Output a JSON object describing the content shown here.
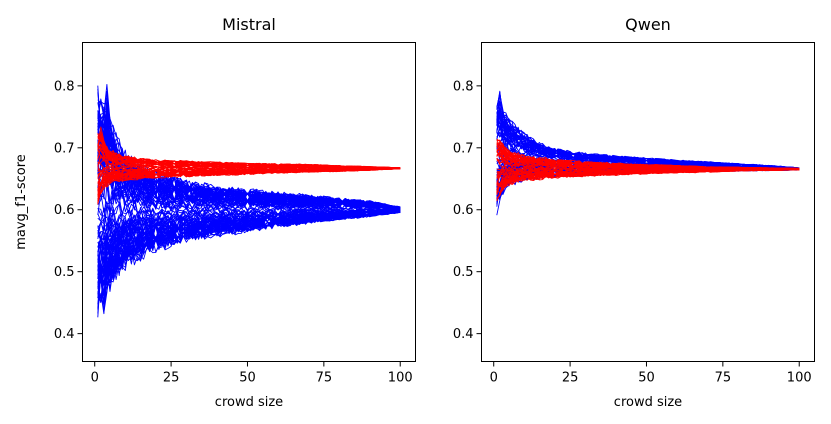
{
  "chart_data": [
    {
      "type": "line",
      "title": "Mistral",
      "xlabel": "crowd size",
      "ylabel": "mavg_f1-score",
      "xlim": [
        -4,
        105
      ],
      "ylim": [
        0.355,
        0.87
      ],
      "xticks": [
        0,
        25,
        50,
        75,
        100
      ],
      "xtick_labels": [
        "0",
        "25",
        "50",
        "75",
        "100"
      ],
      "yticks": [
        0.4,
        0.5,
        0.6,
        0.7,
        0.8
      ],
      "ytick_labels": [
        "0.4",
        "0.5",
        "0.6",
        "0.7",
        "0.8"
      ],
      "grid": false,
      "series": [
        {
          "name": "blue runs",
          "color": "#0000ff",
          "x": [
            1,
            2,
            3,
            4,
            5,
            7,
            10,
            15,
            20,
            30,
            40,
            50,
            60,
            70,
            80,
            90,
            100
          ],
          "center": [
            0.6,
            0.6,
            0.6,
            0.6,
            0.6,
            0.6,
            0.598,
            0.598,
            0.598,
            0.599,
            0.6,
            0.6,
            0.6,
            0.6,
            0.6,
            0.6,
            0.6
          ],
          "upper": [
            0.81,
            0.8,
            0.79,
            0.82,
            0.76,
            0.725,
            0.7,
            0.68,
            0.665,
            0.65,
            0.64,
            0.635,
            0.63,
            0.625,
            0.62,
            0.615,
            0.605
          ],
          "lower": [
            0.42,
            0.44,
            0.42,
            0.45,
            0.46,
            0.48,
            0.5,
            0.515,
            0.53,
            0.545,
            0.555,
            0.562,
            0.57,
            0.577,
            0.583,
            0.588,
            0.595
          ],
          "count": 110
        },
        {
          "name": "red runs",
          "color": "#ff0000",
          "x": [
            1,
            2,
            3,
            4,
            5,
            7,
            10,
            15,
            20,
            30,
            40,
            50,
            60,
            70,
            80,
            90,
            100
          ],
          "center": [
            0.668,
            0.668,
            0.668,
            0.668,
            0.668,
            0.667,
            0.667,
            0.667,
            0.667,
            0.667,
            0.667,
            0.667,
            0.667,
            0.667,
            0.667,
            0.667,
            0.667
          ],
          "upper": [
            0.73,
            0.74,
            0.72,
            0.705,
            0.7,
            0.695,
            0.69,
            0.685,
            0.682,
            0.68,
            0.678,
            0.676,
            0.675,
            0.674,
            0.672,
            0.67,
            0.668
          ],
          "lower": [
            0.6,
            0.62,
            0.63,
            0.635,
            0.64,
            0.643,
            0.645,
            0.648,
            0.65,
            0.652,
            0.654,
            0.656,
            0.658,
            0.66,
            0.661,
            0.663,
            0.666
          ],
          "count": 60
        }
      ]
    },
    {
      "type": "line",
      "title": "Qwen",
      "xlabel": "crowd size",
      "ylabel": "",
      "xlim": [
        -4,
        105
      ],
      "ylim": [
        0.355,
        0.87
      ],
      "xticks": [
        0,
        25,
        50,
        75,
        100
      ],
      "xtick_labels": [
        "0",
        "25",
        "50",
        "75",
        "100"
      ],
      "yticks": [
        0.4,
        0.5,
        0.6,
        0.7,
        0.8
      ],
      "ytick_labels": [
        "0.4",
        "0.5",
        "0.6",
        "0.7",
        "0.8"
      ],
      "grid": false,
      "series": [
        {
          "name": "blue runs",
          "color": "#0000ff",
          "x": [
            1,
            2,
            3,
            4,
            5,
            7,
            10,
            15,
            20,
            30,
            40,
            50,
            60,
            70,
            80,
            90,
            100
          ],
          "center": [
            0.69,
            0.69,
            0.688,
            0.687,
            0.686,
            0.685,
            0.684,
            0.682,
            0.68,
            0.677,
            0.675,
            0.673,
            0.671,
            0.67,
            0.668,
            0.667,
            0.665
          ],
          "upper": [
            0.78,
            0.8,
            0.77,
            0.76,
            0.75,
            0.74,
            0.725,
            0.71,
            0.7,
            0.692,
            0.688,
            0.684,
            0.681,
            0.678,
            0.675,
            0.672,
            0.668
          ],
          "lower": [
            0.59,
            0.61,
            0.62,
            0.63,
            0.635,
            0.64,
            0.645,
            0.65,
            0.652,
            0.655,
            0.657,
            0.659,
            0.66,
            0.661,
            0.662,
            0.663,
            0.664
          ],
          "count": 90
        },
        {
          "name": "red runs",
          "color": "#ff0000",
          "x": [
            1,
            2,
            3,
            4,
            5,
            7,
            10,
            15,
            20,
            30,
            40,
            50,
            60,
            70,
            80,
            90,
            100
          ],
          "center": [
            0.668,
            0.668,
            0.668,
            0.667,
            0.667,
            0.667,
            0.667,
            0.667,
            0.666,
            0.666,
            0.666,
            0.666,
            0.666,
            0.666,
            0.666,
            0.666,
            0.666
          ],
          "upper": [
            0.725,
            0.72,
            0.712,
            0.705,
            0.7,
            0.695,
            0.69,
            0.686,
            0.683,
            0.679,
            0.676,
            0.674,
            0.672,
            0.67,
            0.669,
            0.668,
            0.667
          ],
          "lower": [
            0.61,
            0.62,
            0.628,
            0.633,
            0.637,
            0.641,
            0.645,
            0.648,
            0.65,
            0.653,
            0.655,
            0.657,
            0.659,
            0.66,
            0.662,
            0.663,
            0.664
          ],
          "count": 60
        }
      ]
    }
  ]
}
